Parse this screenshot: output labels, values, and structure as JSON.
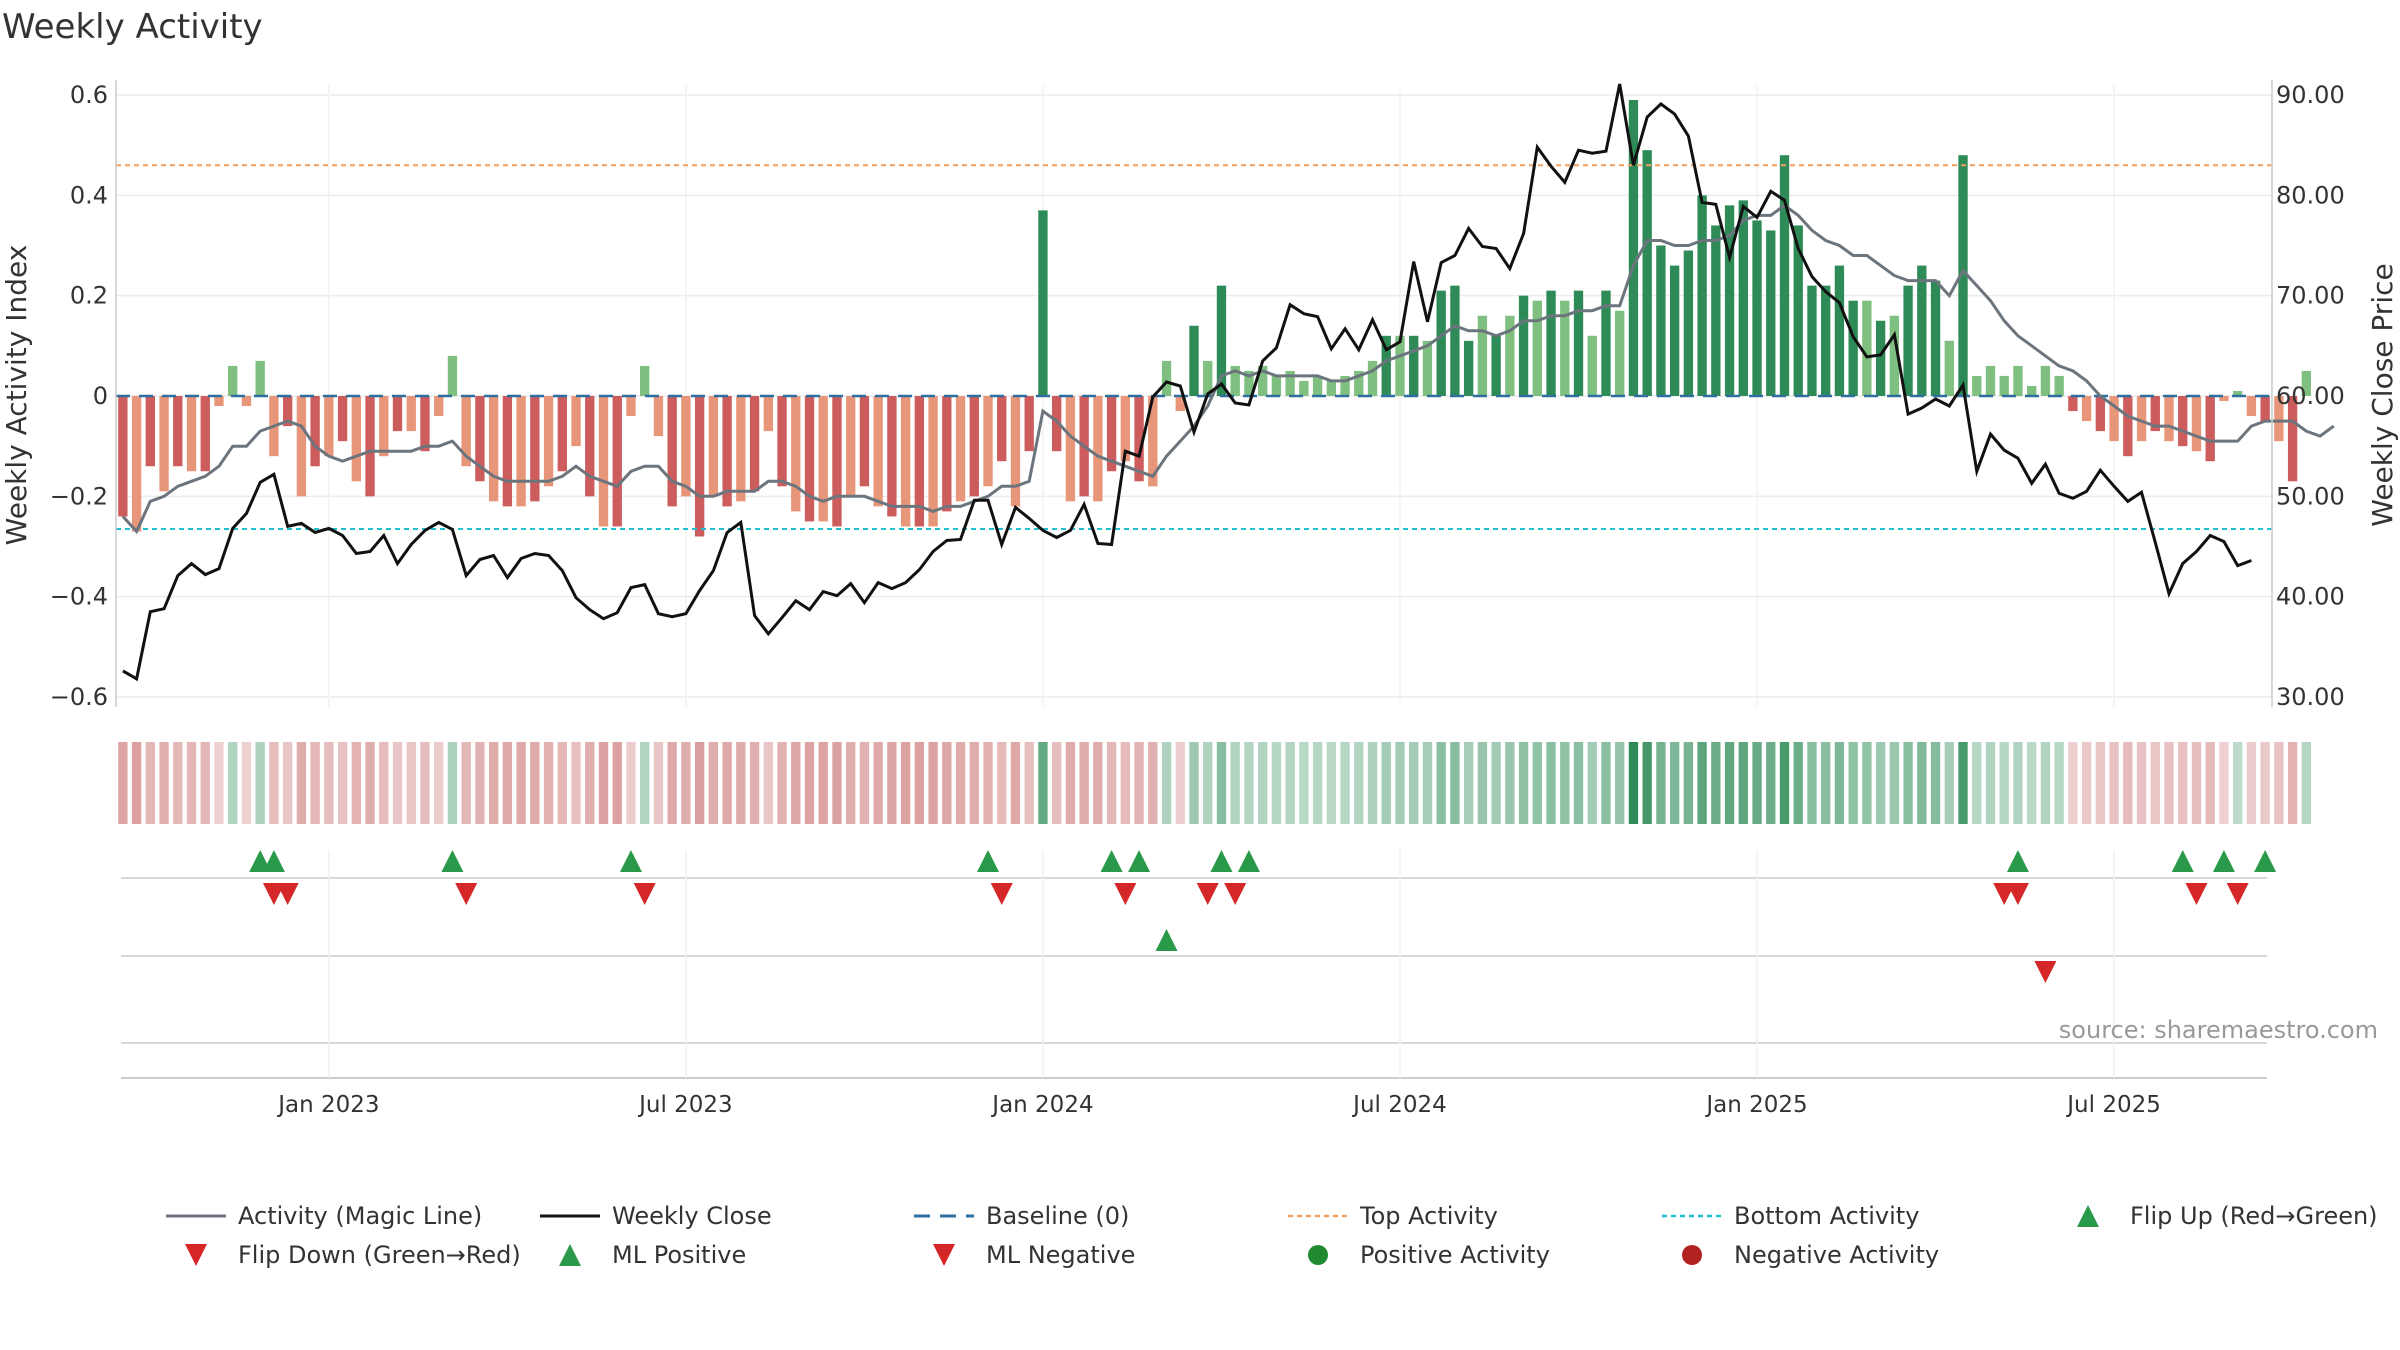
{
  "chart_data": {
    "type": "bar",
    "title": "Weekly Activity",
    "ylabel": "Weekly Activity Index",
    "ylabel_right": "Weekly Close Price",
    "source": "source: sharemaestro.com",
    "ylim": [
      -0.6,
      0.6
    ],
    "ylim_right": [
      30,
      90
    ],
    "yticks": [
      {
        "value": 0.6,
        "label": "0.6"
      },
      {
        "value": 0.4,
        "label": "0.4"
      },
      {
        "value": 0.2,
        "label": "0.2"
      },
      {
        "value": 0,
        "label": "0"
      },
      {
        "value": -0.2,
        "label": "−0.2"
      },
      {
        "value": -0.4,
        "label": "−0.4"
      },
      {
        "value": -0.6,
        "label": "−0.6"
      }
    ],
    "yticks_right": [
      {
        "value": 90,
        "label": "90.00"
      },
      {
        "value": 80,
        "label": "80.00"
      },
      {
        "value": 70,
        "label": "70.00"
      },
      {
        "value": 60,
        "label": "60.00"
      },
      {
        "value": 50,
        "label": "50.00"
      },
      {
        "value": 40,
        "label": "40.00"
      },
      {
        "value": 30,
        "label": "30.00"
      }
    ],
    "x_domain": [
      0,
      156
    ],
    "xticks": [
      {
        "week": 15,
        "label": "Jan 2023"
      },
      {
        "week": 41,
        "label": "Jul 2023"
      },
      {
        "week": 67,
        "label": "Jan 2024"
      },
      {
        "week": 93,
        "label": "Jul 2024"
      },
      {
        "week": 119,
        "label": "Jan 2025"
      },
      {
        "week": 145,
        "label": "Jul 2025"
      }
    ],
    "top_activity": 0.46,
    "bottom_activity": -0.265,
    "activity": [
      -0.24,
      -0.27,
      -0.14,
      -0.19,
      -0.14,
      -0.15,
      -0.15,
      -0.02,
      0.06,
      -0.02,
      0.07,
      -0.12,
      -0.06,
      -0.2,
      -0.14,
      -0.12,
      -0.09,
      -0.17,
      -0.2,
      -0.12,
      -0.07,
      -0.07,
      -0.11,
      -0.04,
      0.08,
      -0.14,
      -0.17,
      -0.21,
      -0.22,
      -0.22,
      -0.21,
      -0.18,
      -0.15,
      -0.1,
      -0.2,
      -0.26,
      -0.26,
      -0.04,
      0.06,
      -0.08,
      -0.22,
      -0.2,
      -0.28,
      -0.2,
      -0.22,
      -0.21,
      -0.19,
      -0.07,
      -0.18,
      -0.23,
      -0.25,
      -0.25,
      -0.26,
      -0.2,
      -0.18,
      -0.22,
      -0.24,
      -0.26,
      -0.26,
      -0.26,
      -0.23,
      -0.21,
      -0.2,
      -0.18,
      -0.13,
      -0.22,
      -0.11,
      0.37,
      -0.11,
      -0.21,
      -0.2,
      -0.21,
      -0.15,
      -0.13,
      -0.17,
      -0.18,
      0.07,
      -0.03,
      0.14,
      0.07,
      0.22,
      0.06,
      0.05,
      0.06,
      0.04,
      0.05,
      0.03,
      0.04,
      0.03,
      0.04,
      0.05,
      0.07,
      0.12,
      0.12,
      0.12,
      0.11,
      0.21,
      0.22,
      0.11,
      0.16,
      0.12,
      0.16,
      0.2,
      0.19,
      0.21,
      0.19,
      0.21,
      0.12,
      0.21,
      0.17,
      0.59,
      0.49,
      0.3,
      0.26,
      0.29,
      0.4,
      0.34,
      0.38,
      0.39,
      0.35,
      0.33,
      0.48,
      0.34,
      0.22,
      0.22,
      0.26,
      0.19,
      0.19,
      0.15,
      0.16,
      0.22,
      0.26,
      0.23,
      0.11,
      0.48,
      0.04,
      0.06,
      0.04,
      0.06,
      0.02,
      0.06,
      0.04,
      -0.03,
      -0.05,
      -0.07,
      -0.09,
      -0.12,
      -0.09,
      -0.07,
      -0.09,
      -0.1,
      -0.11,
      -0.13,
      -0.01,
      0.01,
      -0.04,
      -0.05,
      -0.09,
      -0.17,
      0.05
    ],
    "magic_line": [
      -0.24,
      -0.27,
      -0.21,
      -0.2,
      -0.18,
      -0.17,
      -0.16,
      -0.14,
      -0.1,
      -0.1,
      -0.07,
      -0.06,
      -0.05,
      -0.06,
      -0.1,
      -0.12,
      -0.13,
      -0.12,
      -0.11,
      -0.11,
      -0.11,
      -0.11,
      -0.1,
      -0.1,
      -0.09,
      -0.12,
      -0.14,
      -0.16,
      -0.17,
      -0.17,
      -0.17,
      -0.17,
      -0.16,
      -0.14,
      -0.16,
      -0.17,
      -0.18,
      -0.15,
      -0.14,
      -0.14,
      -0.17,
      -0.18,
      -0.2,
      -0.2,
      -0.19,
      -0.19,
      -0.19,
      -0.17,
      -0.17,
      -0.18,
      -0.2,
      -0.21,
      -0.2,
      -0.2,
      -0.2,
      -0.21,
      -0.22,
      -0.22,
      -0.22,
      -0.23,
      -0.22,
      -0.22,
      -0.21,
      -0.2,
      -0.18,
      -0.18,
      -0.17,
      -0.03,
      -0.05,
      -0.08,
      -0.1,
      -0.12,
      -0.13,
      -0.14,
      -0.15,
      -0.16,
      -0.12,
      -0.09,
      -0.06,
      -0.02,
      0.04,
      0.05,
      0.04,
      0.05,
      0.04,
      0.04,
      0.04,
      0.04,
      0.03,
      0.03,
      0.04,
      0.05,
      0.07,
      0.08,
      0.09,
      0.1,
      0.12,
      0.14,
      0.13,
      0.13,
      0.12,
      0.13,
      0.15,
      0.15,
      0.16,
      0.16,
      0.17,
      0.17,
      0.18,
      0.18,
      0.26,
      0.31,
      0.31,
      0.3,
      0.3,
      0.31,
      0.31,
      0.32,
      0.35,
      0.36,
      0.36,
      0.38,
      0.36,
      0.33,
      0.31,
      0.3,
      0.28,
      0.28,
      0.26,
      0.24,
      0.23,
      0.23,
      0.23,
      0.2,
      0.25,
      0.22,
      0.19,
      0.15,
      0.12,
      0.1,
      0.08,
      0.06,
      0.05,
      0.03,
      0.0,
      -0.02,
      -0.04,
      -0.05,
      -0.06,
      -0.06,
      -0.07,
      -0.08,
      -0.09,
      -0.09,
      -0.09,
      -0.06,
      -0.05,
      -0.05,
      -0.05,
      -0.07,
      -0.08,
      -0.06
    ],
    "weekly_close": [
      32.6,
      31.8,
      38.5,
      38.8,
      42.1,
      43.3,
      42.2,
      42.8,
      46.8,
      48.3,
      51.4,
      52.2,
      47.0,
      47.3,
      46.4,
      46.8,
      46.1,
      44.3,
      44.5,
      46.1,
      43.3,
      45.2,
      46.6,
      47.4,
      46.7,
      42.1,
      43.7,
      44.1,
      41.9,
      43.8,
      44.3,
      44.1,
      42.6,
      39.9,
      38.7,
      37.8,
      38.4,
      40.9,
      41.2,
      38.3,
      38.0,
      38.3,
      40.6,
      42.6,
      46.4,
      47.4,
      38.1,
      36.3,
      37.9,
      39.6,
      38.7,
      40.5,
      40.1,
      41.3,
      39.4,
      41.4,
      40.8,
      41.4,
      42.7,
      44.5,
      45.6,
      45.7,
      49.6,
      49.6,
      45.2,
      48.9,
      47.8,
      46.6,
      45.9,
      46.6,
      49.2,
      45.3,
      45.2,
      54.5,
      54.0,
      59.9,
      61.4,
      61.0,
      56.4,
      60.2,
      61.2,
      59.3,
      59.1,
      63.5,
      64.8,
      69.1,
      68.2,
      67.9,
      64.7,
      66.7,
      64.6,
      67.6,
      64.6,
      65.4,
      73.4,
      67.4,
      73.3,
      74.0,
      76.7,
      74.9,
      74.7,
      72.7,
      76.2,
      84.8,
      82.9,
      81.3,
      84.5,
      84.2,
      84.4,
      91.1,
      83.0,
      87.8,
      89.1,
      88.1,
      85.9,
      79.3,
      79.1,
      73.8,
      78.9,
      77.8,
      80.4,
      79.5,
      74.7,
      71.9,
      70.4,
      69.3,
      65.9,
      63.9,
      64.1,
      66.1,
      58.2,
      58.8,
      59.7,
      59.0,
      61.1,
      52.5,
      56.2,
      54.6,
      53.8,
      51.3,
      53.2,
      50.3,
      49.8,
      50.5,
      52.6,
      51.0,
      49.5,
      50.4,
      45.4,
      40.3,
      43.3,
      44.5,
      46.1,
      45.5,
      43.1,
      43.6
    ],
    "flip_up": [
      10,
      11,
      24,
      37,
      63,
      72,
      74,
      80,
      82,
      138,
      150,
      153,
      156
    ],
    "flip_down": [
      11,
      12,
      25,
      38,
      64,
      73,
      79,
      81,
      137,
      138,
      151,
      154
    ],
    "ml_positive": [
      76
    ],
    "ml_negative": [
      140
    ]
  },
  "legend": [
    {
      "label": "Activity (Magic Line)",
      "symbol": "line",
      "color": "#6c757d"
    },
    {
      "label": "Weekly Close",
      "symbol": "line",
      "color": "#111111"
    },
    {
      "label": "Baseline (0)",
      "symbol": "dash",
      "color": "#2f6f9f"
    },
    {
      "label": "Top Activity",
      "symbol": "dot-line",
      "color": "#f0a060"
    },
    {
      "label": "Bottom Activity",
      "symbol": "dot-line",
      "color": "#20c0d0"
    },
    {
      "label": "Flip Up (Red→Green)",
      "symbol": "tri-up",
      "color": "#2a9a4a"
    },
    {
      "label": "Flip Down (Green→Red)",
      "symbol": "tri-down",
      "color": "#d62728"
    },
    {
      "label": "ML Positive",
      "symbol": "tri-up",
      "color": "#2a9a4a"
    },
    {
      "label": "ML Negative",
      "symbol": "tri-down",
      "color": "#d62728"
    },
    {
      "label": "Positive Activity",
      "symbol": "circle",
      "color": "#1f8a30"
    },
    {
      "label": "Negative Activity",
      "symbol": "circle",
      "color": "#b22222"
    }
  ]
}
